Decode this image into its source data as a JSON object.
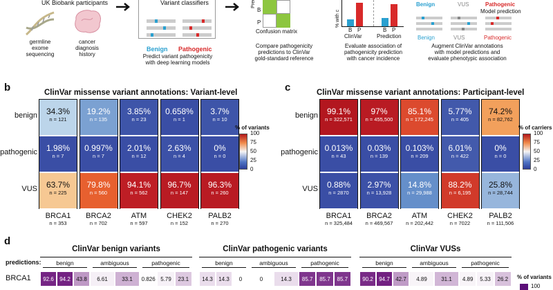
{
  "panel_a": {
    "top_labels": [
      "UK Biobank participants",
      "Variant classifiers"
    ],
    "left_items": [
      {
        "label": "germline\nexome\nsequencing",
        "icon": "dna-icon"
      },
      {
        "label": "cancer\ndiagnosis\nhistory",
        "icon": "tumor-icon"
      }
    ],
    "predict": {
      "benign": "Benign",
      "pathogenic": "Pathogenic",
      "caption": "Predict variant pathogenicity\nwith deep learning models"
    },
    "confusion": {
      "ylabel": "Prediction",
      "row_B": "B",
      "row_P": "P",
      "col_B": "B",
      "col_P": "P",
      "xlabel": "Confusion matrix",
      "caption": "Compare pathogenicity\npredictions to ClinVar\ngold-standard reference"
    },
    "assoc": {
      "ylabel": "% with c",
      "groups": [
        "ClinVar",
        "Prediction"
      ],
      "bars": [
        "B",
        "P",
        "B",
        "P"
      ],
      "caption": "Evaluate association of\npathogenicity prediction\nwith cancer incidence"
    },
    "augment": {
      "labels": [
        "Benign",
        "VUS",
        "Pathogenic"
      ],
      "model_pred": "Model prediction",
      "sub": [
        "Benign",
        "VUS",
        "Pathogenic"
      ],
      "caption": "Augment ClinVar annotations\nwith model predictions and\nevaluate phenotypic association"
    }
  },
  "panel_b": {
    "letter": "b",
    "title": "ClinVar missense variant annotations: Variant-level",
    "rows": [
      "benign",
      "pathogenic",
      "VUS"
    ],
    "legend": {
      "title": "% of variants",
      "ticks": [
        "100",
        "75",
        "50",
        "25",
        "0"
      ]
    },
    "genes": [
      {
        "gene": "BRCA1",
        "n": "n = 353",
        "cells": [
          {
            "pct": "34.3%",
            "n": "n = 121",
            "color": "#bcd5ea",
            "dark": true
          },
          {
            "pct": "1.98%",
            "n": "n = 7",
            "color": "#3a4ea5"
          },
          {
            "pct": "63.7%",
            "n": "n = 225",
            "color": "#f6c893",
            "dark": true
          }
        ]
      },
      {
        "gene": "BRCA2",
        "n": "n = 702",
        "cells": [
          {
            "pct": "19.2%",
            "n": "n = 135",
            "color": "#7ba1d2"
          },
          {
            "pct": "0.997%",
            "n": "n = 7",
            "color": "#3a4ea5"
          },
          {
            "pct": "79.8%",
            "n": "n = 560",
            "color": "#e7602f"
          }
        ]
      },
      {
        "gene": "ATM",
        "n": "n = 597",
        "cells": [
          {
            "pct": "3.85%",
            "n": "n = 23",
            "color": "#3e55a9"
          },
          {
            "pct": "2.01%",
            "n": "n = 12",
            "color": "#3a4ea5"
          },
          {
            "pct": "94.1%",
            "n": "n = 562",
            "color": "#be1e25"
          }
        ]
      },
      {
        "gene": "CHEK2",
        "n": "n = 152",
        "cells": [
          {
            "pct": "0.658%",
            "n": "n = 1",
            "color": "#3a4ea5"
          },
          {
            "pct": "2.63%",
            "n": "n = 4",
            "color": "#3c51a7"
          },
          {
            "pct": "96.7%",
            "n": "n = 147",
            "color": "#b91b23"
          }
        ]
      },
      {
        "gene": "PALB2",
        "n": "n = 270",
        "cells": [
          {
            "pct": "3.7%",
            "n": "n = 10",
            "color": "#3e55a9"
          },
          {
            "pct": "0%",
            "n": "n = 0",
            "color": "#3a4ea5"
          },
          {
            "pct": "96.3%",
            "n": "n = 260",
            "color": "#b91b23"
          }
        ]
      }
    ]
  },
  "panel_c": {
    "letter": "c",
    "title": "ClinVar missense variant annotations: Participant-level",
    "rows": [
      "benign",
      "pathogenic",
      "VUS"
    ],
    "legend": {
      "title": "% of carriers",
      "ticks": [
        "100",
        "75",
        "50",
        "25",
        "0"
      ]
    },
    "genes": [
      {
        "gene": "BRCA1",
        "n": "n = 325,484",
        "cells": [
          {
            "pct": "99.1%",
            "n": "n = 322,571",
            "color": "#b3171f"
          },
          {
            "pct": "0.013%",
            "n": "n = 43",
            "color": "#3a4ea5"
          },
          {
            "pct": "0.88%",
            "n": "n = 2870",
            "color": "#3a4ea5"
          }
        ]
      },
      {
        "gene": "BRCA2",
        "n": "n = 469,567",
        "cells": [
          {
            "pct": "97%",
            "n": "n = 455,500",
            "color": "#b91b23"
          },
          {
            "pct": "0.03%",
            "n": "n = 139",
            "color": "#3a4ea5"
          },
          {
            "pct": "2.97%",
            "n": "n = 13,928",
            "color": "#3c51a7"
          }
        ]
      },
      {
        "gene": "ATM",
        "n": "n = 202,442",
        "cells": [
          {
            "pct": "85.1%",
            "n": "n = 172,245",
            "color": "#dc4a2e"
          },
          {
            "pct": "0.103%",
            "n": "n = 209",
            "color": "#3a4ea5"
          },
          {
            "pct": "14.8%",
            "n": "n = 29,988",
            "color": "#658fca"
          }
        ]
      },
      {
        "gene": "CHEK2",
        "n": "n = 7022",
        "cells": [
          {
            "pct": "5.77%",
            "n": "n = 405",
            "color": "#4259ab"
          },
          {
            "pct": "6.01%",
            "n": "n = 422",
            "color": "#435aac"
          },
          {
            "pct": "88.2%",
            "n": "n = 6,195",
            "color": "#d13a2a"
          }
        ]
      },
      {
        "gene": "PALB2",
        "n": "n = 111,506",
        "cells": [
          {
            "pct": "74.2%",
            "n": "n = 82,762",
            "color": "#f2a05c",
            "dark": true
          },
          {
            "pct": "0%",
            "n": "n = 0",
            "color": "#3a4ea5"
          },
          {
            "pct": "25.8%",
            "n": "n = 28,744",
            "color": "#97b6dc",
            "dark": true
          }
        ]
      }
    ]
  },
  "panel_d": {
    "letter": "d",
    "groups": [
      {
        "title": "ClinVar benign variants",
        "subs": [
          "benign",
          "ambiguous",
          "pathogenic"
        ],
        "values": [
          "92.6",
          "94.2",
          "43.8",
          "6.61",
          "33.1",
          "0.826",
          "5.79",
          "23.1"
        ]
      },
      {
        "title": "ClinVar pathogenic variants",
        "subs": [
          "benign",
          "ambiguous",
          "pathogenic"
        ],
        "values": [
          "14.3",
          "14.3",
          "0",
          "0",
          "14.3",
          "85.7",
          "85.7",
          "85.7"
        ]
      },
      {
        "title": "ClinVar VUSs",
        "subs": [
          "benign",
          "ambiguous",
          "pathogenic"
        ],
        "values": [
          "90.2",
          "94.7",
          "42.7",
          "4.89",
          "31.1",
          "4.89",
          "5.33",
          "26.2"
        ]
      }
    ],
    "predictions_label": "predictions:",
    "row_gene": "BRCA1",
    "legend": {
      "title": "% of variants",
      "tick": "100"
    }
  }
}
